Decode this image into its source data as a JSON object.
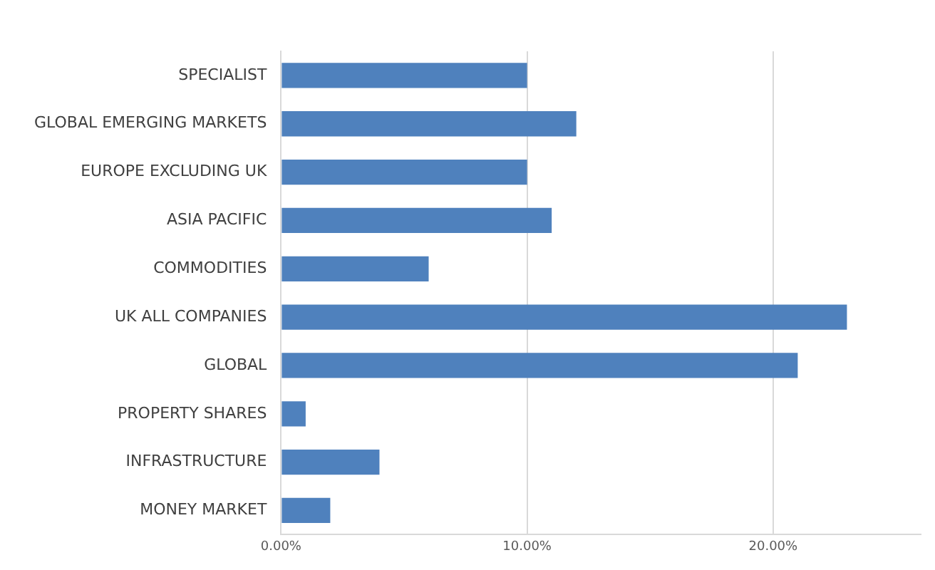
{
  "chart_data": {
    "type": "bar",
    "orientation": "horizontal",
    "categories": [
      "SPECIALIST",
      "GLOBAL EMERGING MARKETS",
      "EUROPE EXCLUDING UK",
      "ASIA PACIFIC",
      "COMMODITIES",
      "UK ALL COMPANIES",
      "GLOBAL",
      "PROPERTY SHARES",
      "INFRASTRUCTURE",
      "MONEY MARKET"
    ],
    "values": [
      10,
      12,
      10,
      11,
      6,
      23,
      21,
      1,
      4,
      2
    ],
    "color": "#4f81bd",
    "xlim": [
      0,
      26
    ],
    "xticks": [
      {
        "value": 0,
        "label": "0.00%"
      },
      {
        "value": 10,
        "label": "10.00%"
      },
      {
        "value": 20,
        "label": "20.00%"
      }
    ],
    "grid": "x",
    "legend": false
  }
}
